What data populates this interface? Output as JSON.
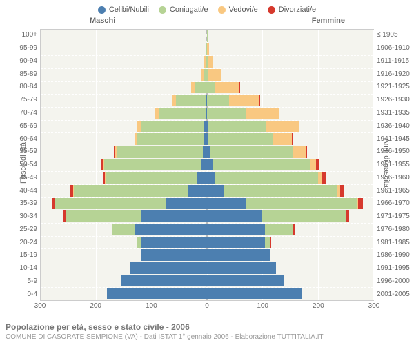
{
  "legend": [
    {
      "label": "Celibi/Nubili",
      "color": "#4c7fb0"
    },
    {
      "label": "Coniugati/e",
      "color": "#b6d395"
    },
    {
      "label": "Vedovi/e",
      "color": "#f9c881"
    },
    {
      "label": "Divorziati/e",
      "color": "#d6392d"
    }
  ],
  "header": {
    "male": "Maschi",
    "female": "Femmine"
  },
  "axis": {
    "left_title": "Fasce di età",
    "right_title": "Anni di nascita"
  },
  "age_labels": [
    "100+",
    "95-99",
    "90-94",
    "85-89",
    "80-84",
    "75-79",
    "70-74",
    "65-69",
    "60-64",
    "55-59",
    "50-54",
    "45-49",
    "40-44",
    "35-39",
    "30-34",
    "25-29",
    "20-24",
    "15-19",
    "10-14",
    "5-9",
    "0-4"
  ],
  "year_labels": [
    "≤ 1905",
    "1906-1910",
    "1911-1915",
    "1916-1920",
    "1921-1925",
    "1926-1930",
    "1931-1935",
    "1936-1940",
    "1941-1945",
    "1946-1950",
    "1951-1955",
    "1956-1960",
    "1961-1965",
    "1966-1970",
    "1971-1975",
    "1976-1980",
    "1981-1985",
    "1986-1990",
    "1991-1995",
    "1996-2000",
    "2001-2005"
  ],
  "x_ticks": [
    300,
    200,
    100,
    0,
    100,
    200,
    300
  ],
  "x_max": 300,
  "male": [
    [
      0,
      0,
      0,
      0
    ],
    [
      0,
      2,
      1,
      0
    ],
    [
      0,
      3,
      2,
      0
    ],
    [
      0,
      6,
      4,
      0
    ],
    [
      0,
      22,
      7,
      0
    ],
    [
      1,
      55,
      8,
      0
    ],
    [
      2,
      85,
      8,
      0
    ],
    [
      5,
      115,
      6,
      0
    ],
    [
      6,
      120,
      4,
      0
    ],
    [
      8,
      155,
      3,
      2
    ],
    [
      10,
      175,
      2,
      3
    ],
    [
      18,
      165,
      1,
      3
    ],
    [
      35,
      205,
      1,
      5
    ],
    [
      75,
      200,
      0,
      5
    ],
    [
      120,
      135,
      0,
      5
    ],
    [
      130,
      40,
      0,
      2
    ],
    [
      120,
      6,
      0,
      0
    ],
    [
      120,
      0,
      0,
      0
    ],
    [
      140,
      0,
      0,
      0
    ],
    [
      155,
      0,
      0,
      0
    ],
    [
      180,
      0,
      0,
      0
    ]
  ],
  "female": [
    [
      0,
      1,
      1,
      0
    ],
    [
      0,
      0,
      4,
      0
    ],
    [
      0,
      1,
      10,
      0
    ],
    [
      0,
      3,
      22,
      0
    ],
    [
      0,
      14,
      45,
      1
    ],
    [
      0,
      40,
      55,
      1
    ],
    [
      0,
      70,
      60,
      1
    ],
    [
      2,
      105,
      58,
      2
    ],
    [
      3,
      115,
      35,
      2
    ],
    [
      6,
      150,
      22,
      3
    ],
    [
      10,
      175,
      12,
      5
    ],
    [
      15,
      185,
      8,
      6
    ],
    [
      30,
      205,
      5,
      8
    ],
    [
      70,
      200,
      3,
      8
    ],
    [
      100,
      150,
      1,
      6
    ],
    [
      105,
      50,
      0,
      3
    ],
    [
      105,
      10,
      0,
      1
    ],
    [
      115,
      0,
      0,
      0
    ],
    [
      125,
      0,
      0,
      0
    ],
    [
      140,
      0,
      0,
      0
    ],
    [
      170,
      0,
      0,
      0
    ]
  ],
  "footer": {
    "title": "Popolazione per età, sesso e stato civile - 2006",
    "subtitle": "COMUNE DI CASORATE SEMPIONE (VA) - Dati ISTAT 1° gennaio 2006 - Elaborazione TUTTITALIA.IT"
  },
  "colors": {
    "plot_bg": "#f4f4ee",
    "grid": "#ffffff"
  }
}
